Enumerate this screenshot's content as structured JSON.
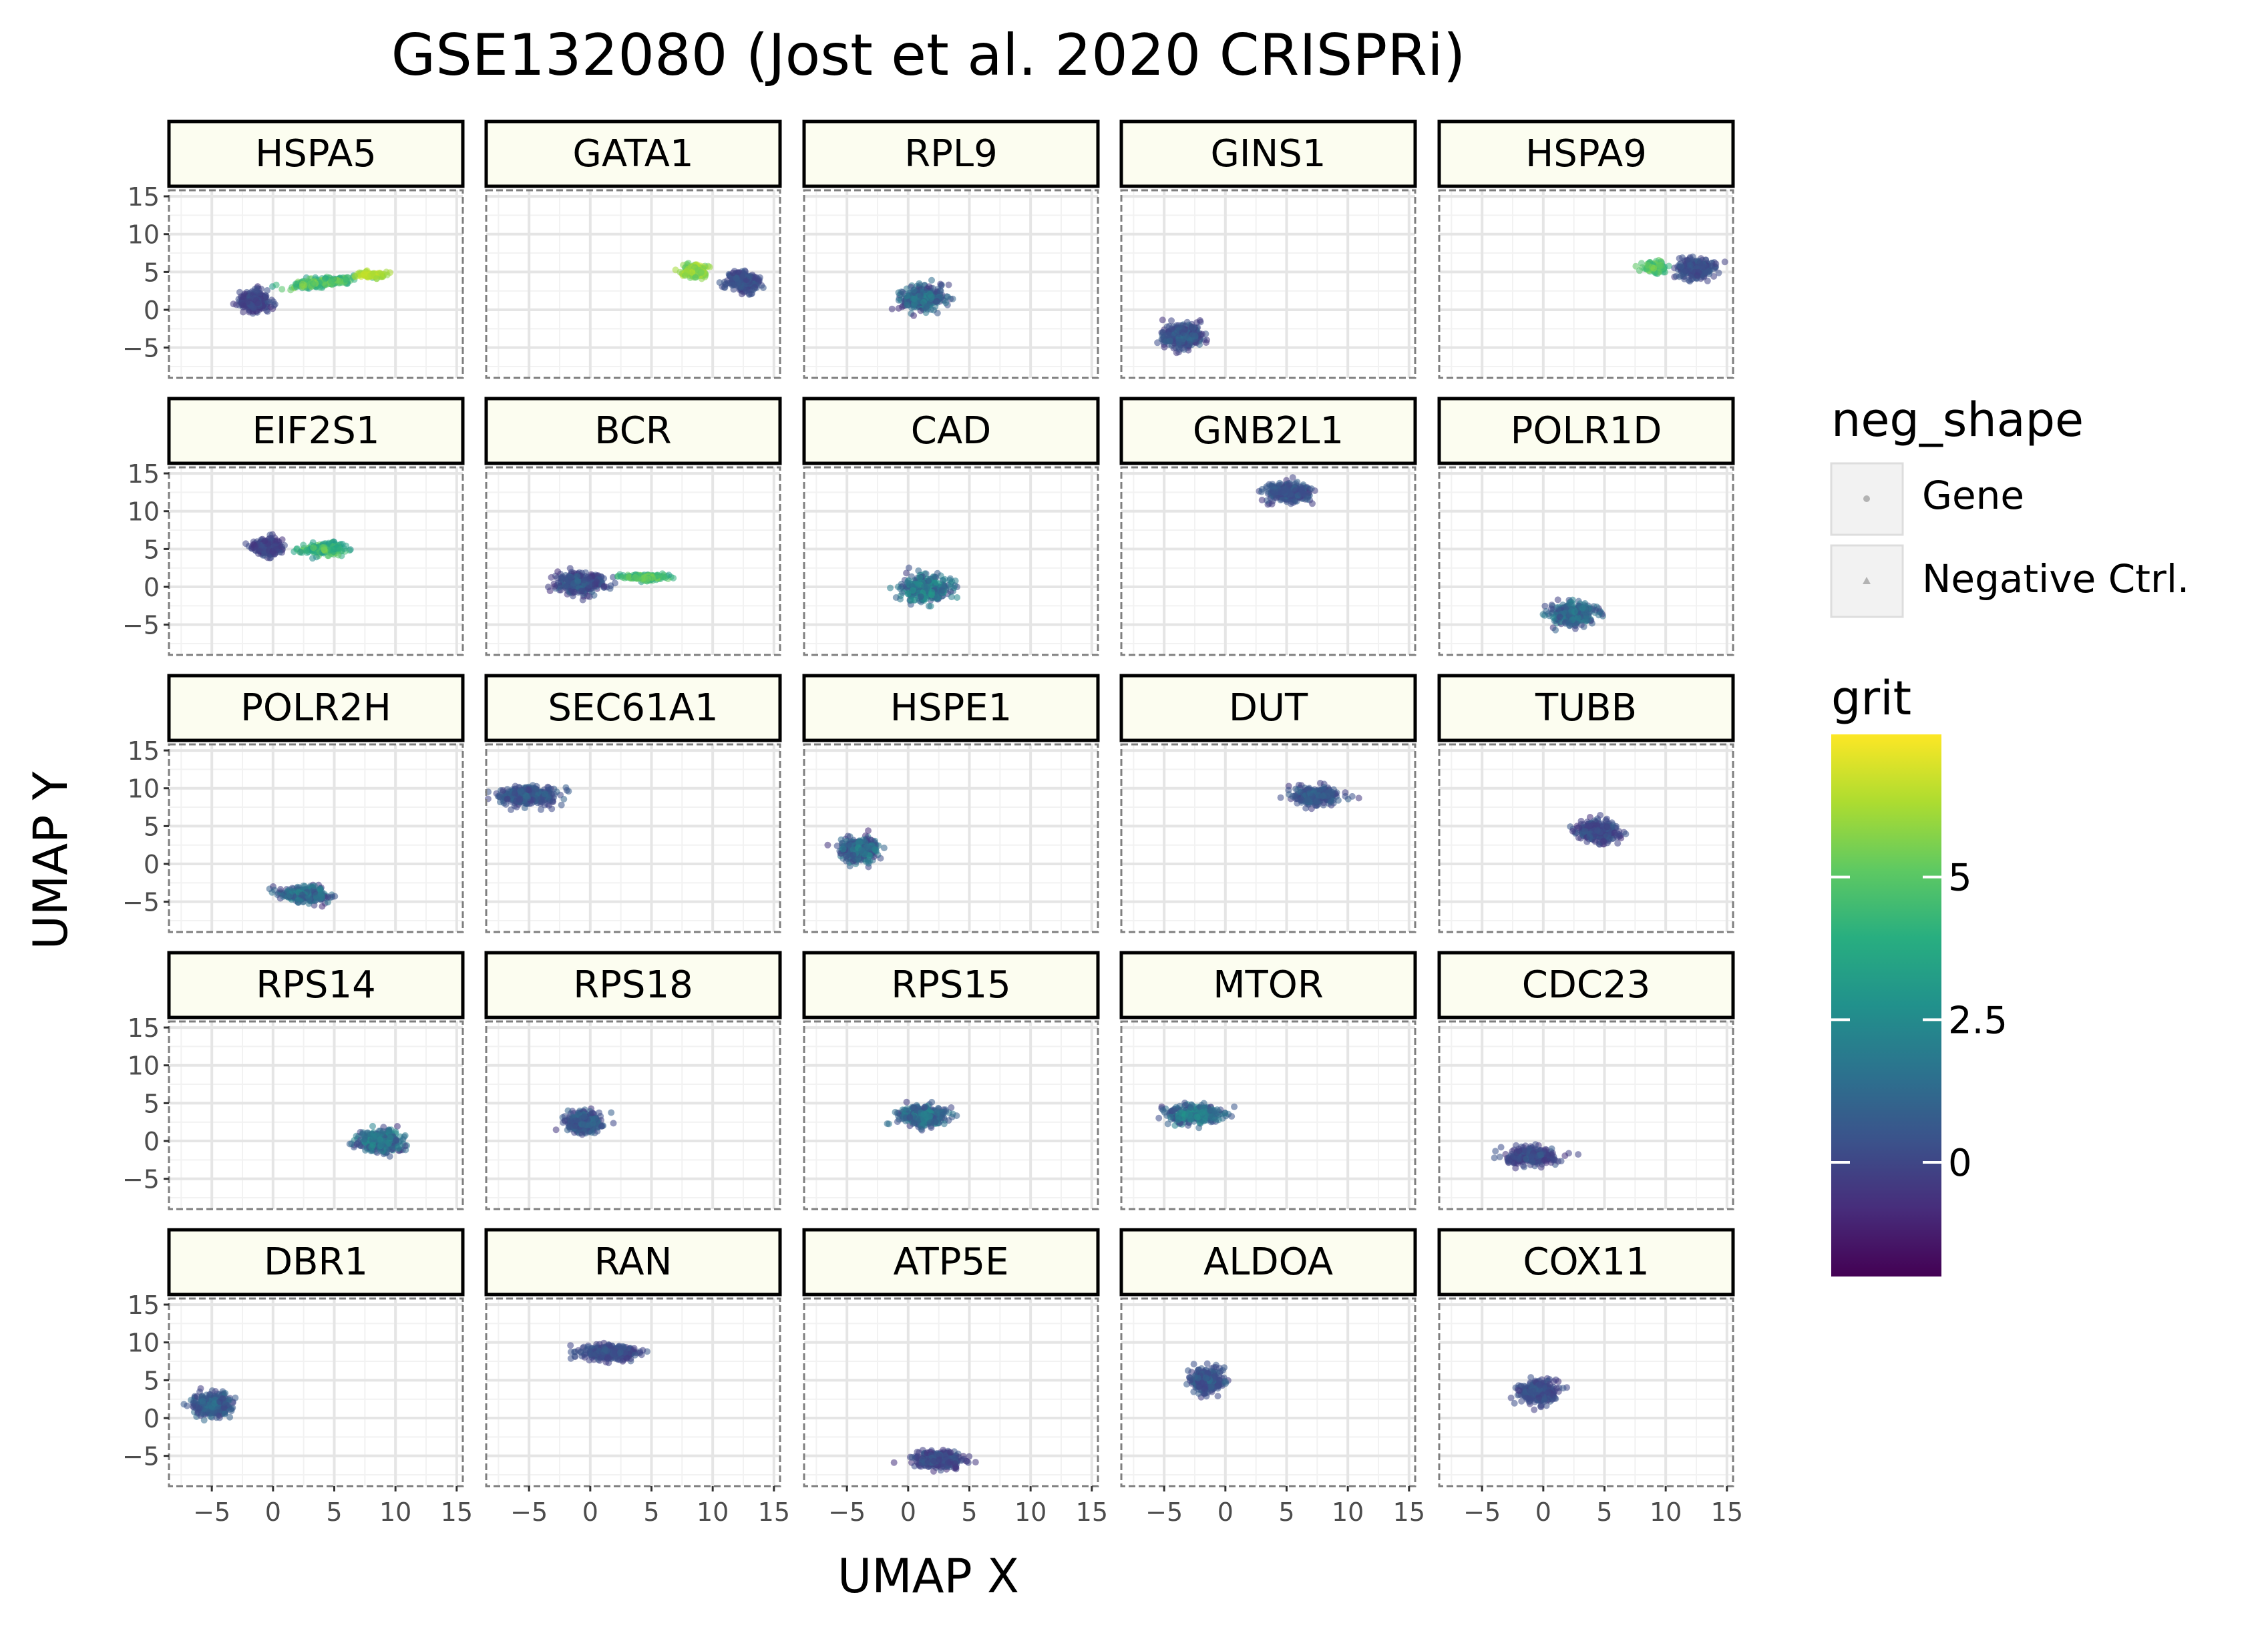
{
  "chart_data": {
    "type": "scatter",
    "title": "GSE132080 (Jost et al. 2020 CRISPRi)",
    "xlabel": "UMAP X",
    "ylabel": "UMAP Y",
    "xlim": [
      -8.5,
      15.5
    ],
    "ylim": [
      -9.0,
      15.8
    ],
    "x_ticks": [
      -5,
      0,
      5,
      10,
      15
    ],
    "y_ticks": [
      15,
      10,
      5,
      0,
      -5
    ],
    "grid": true,
    "facet_layout": {
      "rows": 5,
      "cols": 5
    },
    "legend_position": "right",
    "legend": {
      "shape": {
        "title": "neg_shape",
        "entries": [
          "Gene",
          "Negative Ctrl."
        ]
      },
      "color": {
        "title": "grit",
        "colormap": "viridis",
        "range": [
          -2,
          7.5
        ],
        "ticks": [
          5,
          2.5,
          0
        ]
      }
    },
    "colors": {
      "strip_fill": "#fcfdf0",
      "panel_border": "#7f7f7f",
      "grid_major": "#e5e5e5",
      "grid_minor": "#f2f2f2",
      "text": "#000000",
      "tick_text": "#4d4d4d"
    },
    "panels": [
      {
        "gene": "HSPA5",
        "clusters": [
          {
            "cx": -1.5,
            "cy": 1.2,
            "sx": 1.2,
            "sy": 1.3,
            "n": 260,
            "grit": [
              -0.8,
              0.8
            ]
          },
          {
            "cx": 4.0,
            "cy": 3.6,
            "sx": 2.6,
            "sy": 0.5,
            "n": 220,
            "grit": [
              3.0,
              6.5
            ],
            "tilt": 0.18
          },
          {
            "cx": 8.0,
            "cy": 4.6,
            "sx": 1.0,
            "sy": 0.4,
            "n": 80,
            "grit": [
              5.5,
              7.2
            ]
          }
        ]
      },
      {
        "gene": "GATA1",
        "clusters": [
          {
            "cx": 12.5,
            "cy": 3.8,
            "sx": 1.4,
            "sy": 1.3,
            "n": 240,
            "grit": [
              -0.5,
              1.0
            ]
          },
          {
            "cx": 8.5,
            "cy": 5.2,
            "sx": 1.1,
            "sy": 0.9,
            "n": 140,
            "grit": [
              4.5,
              7.2
            ]
          }
        ]
      },
      {
        "gene": "RPL9",
        "clusters": [
          {
            "cx": 1.2,
            "cy": 1.5,
            "sx": 1.7,
            "sy": 1.5,
            "n": 320,
            "grit": [
              -0.8,
              2.8
            ]
          }
        ]
      },
      {
        "gene": "GINS1",
        "clusters": [
          {
            "cx": -3.5,
            "cy": -3.5,
            "sx": 1.6,
            "sy": 1.5,
            "n": 320,
            "grit": [
              -0.8,
              1.5
            ]
          }
        ]
      },
      {
        "gene": "HSPA9",
        "clusters": [
          {
            "cx": 12.5,
            "cy": 5.5,
            "sx": 1.6,
            "sy": 1.3,
            "n": 260,
            "grit": [
              -0.5,
              1.2
            ]
          },
          {
            "cx": 9.0,
            "cy": 5.6,
            "sx": 0.9,
            "sy": 0.7,
            "n": 110,
            "grit": [
              3.5,
              6.0
            ]
          }
        ]
      },
      {
        "gene": "EIF2S1",
        "clusters": [
          {
            "cx": -0.5,
            "cy": 5.2,
            "sx": 1.2,
            "sy": 1.1,
            "n": 220,
            "grit": [
              -0.8,
              0.8
            ]
          },
          {
            "cx": 4.2,
            "cy": 5.0,
            "sx": 1.6,
            "sy": 0.8,
            "n": 170,
            "grit": [
              2.5,
              6.0
            ]
          }
        ]
      },
      {
        "gene": "BCR",
        "clusters": [
          {
            "cx": -0.8,
            "cy": 0.5,
            "sx": 1.9,
            "sy": 1.3,
            "n": 300,
            "grit": [
              -0.8,
              1.5
            ]
          },
          {
            "cx": 4.5,
            "cy": 1.3,
            "sx": 1.8,
            "sy": 0.4,
            "n": 150,
            "grit": [
              3.0,
              6.0
            ]
          }
        ]
      },
      {
        "gene": "CAD",
        "clusters": [
          {
            "cx": 1.5,
            "cy": -0.2,
            "sx": 1.9,
            "sy": 1.6,
            "n": 320,
            "grit": [
              -0.5,
              4.0
            ]
          }
        ]
      },
      {
        "gene": "GNB2L1",
        "clusters": [
          {
            "cx": 5.0,
            "cy": 12.5,
            "sx": 1.8,
            "sy": 1.2,
            "n": 300,
            "grit": [
              -0.5,
              1.5
            ]
          }
        ]
      },
      {
        "gene": "POLR1D",
        "clusters": [
          {
            "cx": 2.5,
            "cy": -3.5,
            "sx": 1.7,
            "sy": 1.5,
            "n": 320,
            "grit": [
              -0.5,
              3.0
            ]
          }
        ]
      },
      {
        "gene": "POLR2H",
        "clusters": [
          {
            "cx": 2.5,
            "cy": -4.0,
            "sx": 2.0,
            "sy": 1.0,
            "n": 300,
            "grit": [
              -0.8,
              3.0
            ]
          }
        ]
      },
      {
        "gene": "SEC61A1",
        "clusters": [
          {
            "cx": -5.0,
            "cy": 9.0,
            "sx": 2.2,
            "sy": 1.2,
            "n": 320,
            "grit": [
              -0.5,
              1.5
            ]
          }
        ]
      },
      {
        "gene": "HSPE1",
        "clusters": [
          {
            "cx": -4.0,
            "cy": 1.8,
            "sx": 1.5,
            "sy": 1.5,
            "n": 320,
            "grit": [
              -0.8,
              3.0
            ]
          }
        ]
      },
      {
        "gene": "DUT",
        "clusters": [
          {
            "cx": 7.5,
            "cy": 9.0,
            "sx": 1.8,
            "sy": 1.1,
            "n": 300,
            "grit": [
              -0.5,
              1.5
            ]
          }
        ]
      },
      {
        "gene": "TUBB",
        "clusters": [
          {
            "cx": 4.5,
            "cy": 4.3,
            "sx": 1.6,
            "sy": 1.3,
            "n": 300,
            "grit": [
              -0.8,
              1.2
            ]
          }
        ]
      },
      {
        "gene": "RPS14",
        "clusters": [
          {
            "cx": 8.7,
            "cy": 0.0,
            "sx": 1.8,
            "sy": 1.4,
            "n": 330,
            "grit": [
              -0.5,
              3.5
            ]
          }
        ]
      },
      {
        "gene": "RPS18",
        "clusters": [
          {
            "cx": -0.5,
            "cy": 2.5,
            "sx": 1.4,
            "sy": 1.3,
            "n": 300,
            "grit": [
              -0.5,
              1.8
            ]
          }
        ]
      },
      {
        "gene": "RPS15",
        "clusters": [
          {
            "cx": 1.2,
            "cy": 3.3,
            "sx": 1.8,
            "sy": 1.3,
            "n": 320,
            "grit": [
              -0.5,
              3.0
            ]
          }
        ]
      },
      {
        "gene": "MTOR",
        "clusters": [
          {
            "cx": -2.5,
            "cy": 3.5,
            "sx": 2.0,
            "sy": 1.2,
            "n": 320,
            "grit": [
              -0.5,
              3.5
            ]
          }
        ]
      },
      {
        "gene": "CDC23",
        "clusters": [
          {
            "cx": -1.0,
            "cy": -2.0,
            "sx": 2.0,
            "sy": 1.0,
            "n": 320,
            "grit": [
              -0.8,
              1.2
            ]
          }
        ]
      },
      {
        "gene": "DBR1",
        "clusters": [
          {
            "cx": -5.0,
            "cy": 1.8,
            "sx": 1.5,
            "sy": 1.5,
            "n": 320,
            "grit": [
              -0.5,
              2.0
            ]
          }
        ]
      },
      {
        "gene": "RAN",
        "clusters": [
          {
            "cx": 1.5,
            "cy": 8.7,
            "sx": 2.2,
            "sy": 0.9,
            "n": 320,
            "grit": [
              -0.5,
              1.0
            ]
          }
        ]
      },
      {
        "gene": "ATP5E",
        "clusters": [
          {
            "cx": 2.5,
            "cy": -5.5,
            "sx": 2.0,
            "sy": 1.0,
            "n": 320,
            "grit": [
              -0.8,
              1.0
            ]
          }
        ]
      },
      {
        "gene": "ALDOA",
        "clusters": [
          {
            "cx": -1.5,
            "cy": 5.0,
            "sx": 1.3,
            "sy": 1.5,
            "n": 300,
            "grit": [
              -0.5,
              1.5
            ]
          }
        ]
      },
      {
        "gene": "COX11",
        "clusters": [
          {
            "cx": -0.5,
            "cy": 3.5,
            "sx": 1.5,
            "sy": 1.4,
            "n": 300,
            "grit": [
              -0.5,
              1.0
            ]
          }
        ]
      }
    ]
  }
}
